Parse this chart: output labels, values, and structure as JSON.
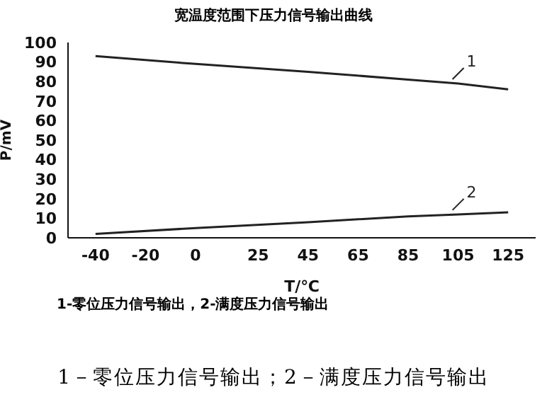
{
  "chart_data": {
    "type": "line",
    "title": "宽温度范围下压力信号输出曲线",
    "xlabel": "T/℃",
    "ylabel": "P/mV",
    "xlim": [
      -51,
      136
    ],
    "xticks": [
      -40,
      -20,
      0,
      25,
      45,
      65,
      85,
      105,
      125
    ],
    "ylim": [
      0,
      100
    ],
    "yticks": [
      0,
      10,
      20,
      30,
      40,
      50,
      60,
      70,
      80,
      90,
      100
    ],
    "marker": "none",
    "line_style": "solid",
    "series": [
      {
        "name": "1",
        "color": "#222222",
        "x": [
          -40,
          0,
          45,
          85,
          105,
          125
        ],
        "values": [
          93,
          89,
          85,
          81,
          79,
          76
        ]
      },
      {
        "name": "2",
        "color": "#222222",
        "x": [
          -40,
          0,
          45,
          85,
          105,
          125
        ],
        "values": [
          2,
          5,
          8,
          11,
          12,
          13
        ]
      }
    ],
    "annotations": [
      "1-零位压力信号输出，2-满度压力信号输出",
      "1－零位压力信号输出；2－满度压力信号输出"
    ]
  }
}
